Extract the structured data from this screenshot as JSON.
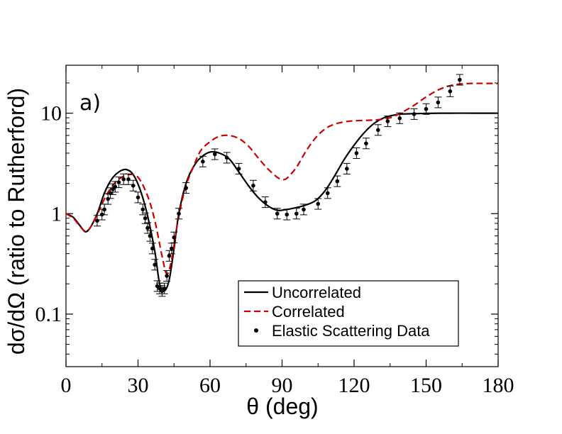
{
  "chart_data": {
    "type": "line",
    "panel_label": "a)",
    "xlabel": "θ (deg)",
    "ylabel": "dσ/dΩ (ratio to Rutherford)",
    "xlim": [
      0,
      180
    ],
    "ylim": [
      0.03,
      30
    ],
    "yscale": "log",
    "x_ticks": [
      0,
      30,
      60,
      90,
      120,
      150,
      180
    ],
    "x_tick_labels": [
      "0",
      "30",
      "60",
      "90",
      "120",
      "150",
      "180"
    ],
    "y_ticks": [
      0.1,
      1,
      10
    ],
    "y_tick_labels": [
      "0.1",
      "1",
      "10"
    ],
    "legend_position": "bottom-center",
    "series": [
      {
        "name": "Uncorrelated",
        "style": "solid",
        "color": "#000000",
        "x": [
          0,
          3,
          6,
          8,
          10,
          13,
          16,
          19,
          22,
          25,
          28,
          31,
          34,
          37,
          39,
          41,
          43,
          45,
          47,
          50,
          53,
          56,
          60,
          64,
          68,
          72,
          76,
          80,
          84,
          88,
          92,
          96,
          100,
          104,
          108,
          112,
          116,
          120,
          124,
          128,
          132,
          136,
          140,
          146,
          150,
          160,
          170,
          180
        ],
        "values": [
          1.0,
          0.92,
          0.75,
          0.66,
          0.72,
          1.0,
          1.6,
          2.2,
          2.6,
          2.75,
          2.45,
          1.7,
          0.95,
          0.42,
          0.2,
          0.17,
          0.22,
          0.45,
          1.0,
          2.0,
          2.9,
          3.6,
          4.1,
          4.0,
          3.5,
          2.6,
          1.9,
          1.45,
          1.2,
          1.08,
          1.1,
          1.15,
          1.22,
          1.35,
          1.7,
          2.4,
          3.5,
          4.8,
          6.3,
          7.8,
          8.9,
          9.5,
          9.8,
          9.9,
          9.95,
          10.0,
          10.0,
          10.0
        ]
      },
      {
        "name": "Correlated",
        "style": "dashed",
        "color": "#cc0000",
        "x": [
          0,
          3,
          6,
          8,
          10,
          13,
          16,
          19,
          22,
          26,
          30,
          34,
          37,
          40,
          42,
          44,
          47,
          50,
          53,
          56,
          60,
          64,
          68,
          72,
          76,
          80,
          84,
          88,
          90,
          92,
          96,
          100,
          104,
          108,
          112,
          116,
          120,
          126,
          130,
          135,
          140,
          145,
          150,
          155,
          160,
          165,
          170,
          175,
          180
        ],
        "values": [
          1.0,
          0.9,
          0.74,
          0.67,
          0.72,
          0.98,
          1.4,
          1.85,
          2.2,
          2.45,
          2.3,
          1.5,
          0.85,
          0.38,
          0.25,
          0.35,
          0.95,
          1.9,
          2.9,
          4.2,
          5.2,
          5.9,
          6.0,
          5.6,
          4.7,
          3.6,
          2.8,
          2.3,
          2.2,
          2.25,
          2.9,
          4.2,
          5.7,
          7.0,
          7.8,
          8.2,
          8.4,
          8.5,
          8.6,
          9.0,
          10.2,
          12.0,
          14.5,
          17.0,
          18.8,
          19.6,
          19.8,
          19.8,
          19.8
        ]
      },
      {
        "name": "Elastic Scattering Data",
        "style": "markers",
        "color": "#000000",
        "x": [
          13,
          15,
          16,
          17.5,
          18.5,
          19.5,
          20.5,
          22,
          24,
          26,
          28,
          30,
          32,
          33,
          34,
          35,
          36,
          37,
          38,
          39,
          40,
          41,
          42,
          43,
          44,
          45,
          47,
          50,
          57,
          62,
          67,
          72,
          78,
          83,
          88,
          92,
          96,
          99,
          105,
          109,
          113,
          117,
          121,
          125,
          130,
          134,
          139,
          145,
          150,
          155,
          160,
          164
        ],
        "values": [
          0.85,
          0.98,
          1.1,
          1.4,
          1.6,
          1.75,
          1.85,
          2.05,
          2.2,
          2.2,
          1.9,
          1.45,
          1.1,
          0.9,
          0.72,
          0.6,
          0.45,
          0.31,
          0.19,
          0.18,
          0.17,
          0.18,
          0.24,
          0.38,
          0.45,
          0.58,
          1.0,
          1.8,
          3.3,
          3.9,
          3.6,
          2.8,
          1.9,
          1.3,
          1.0,
          0.98,
          1.0,
          1.1,
          1.25,
          1.6,
          2.1,
          2.8,
          4.0,
          5.0,
          6.8,
          8.3,
          8.9,
          9.8,
          11.0,
          12.8,
          16.5,
          21.5
        ]
      }
    ]
  }
}
